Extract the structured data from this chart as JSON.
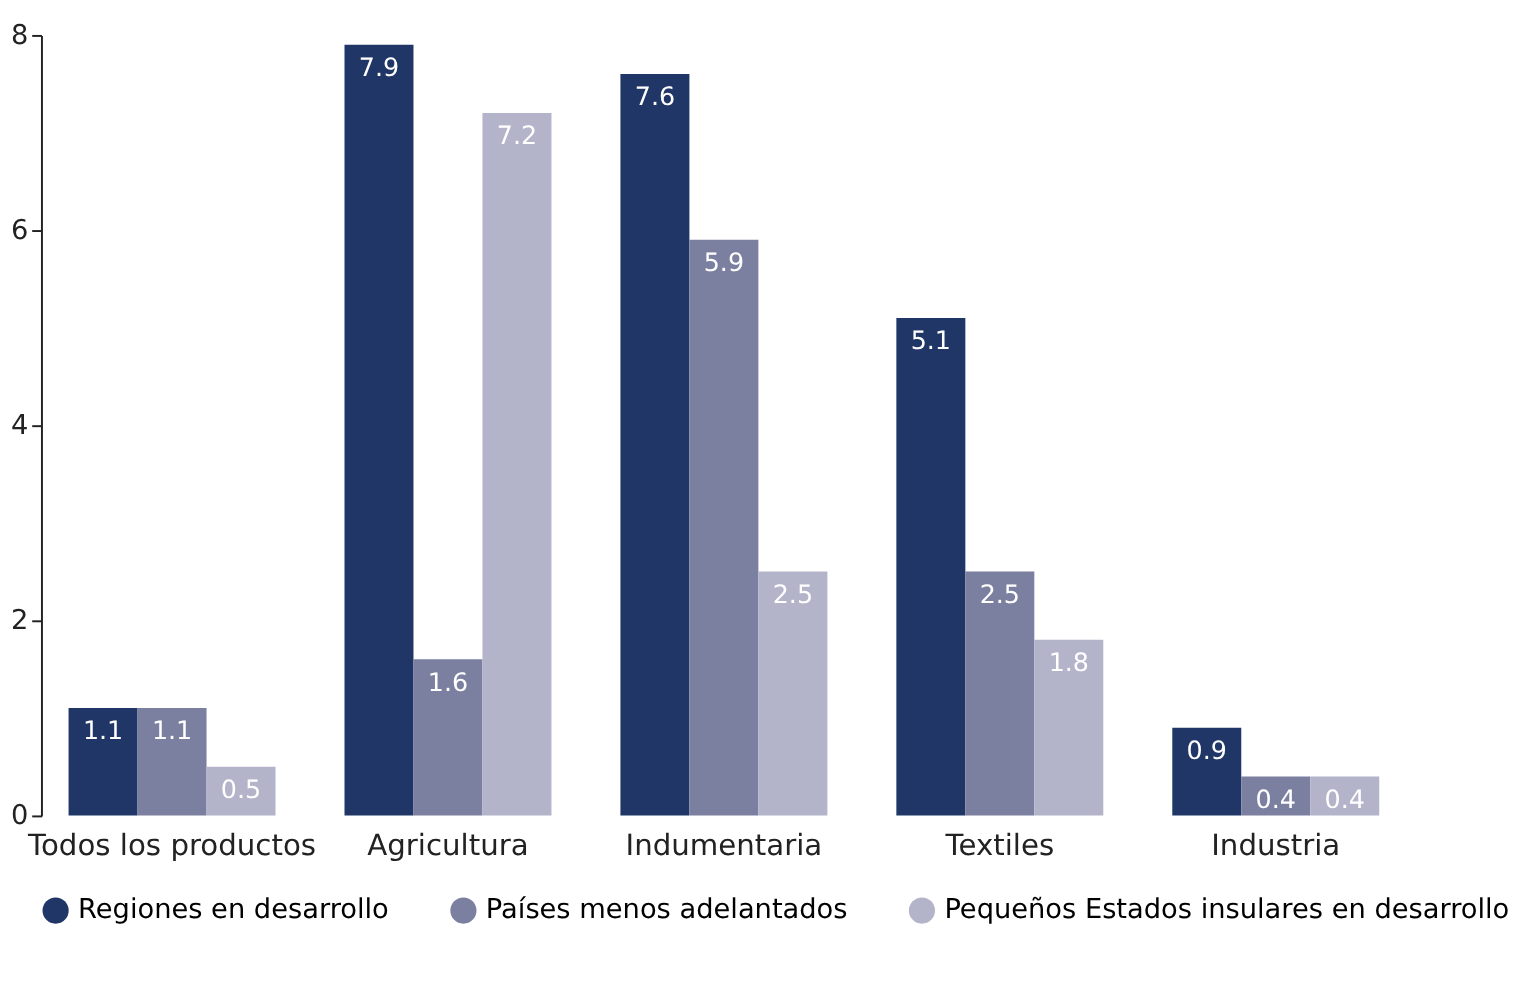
{
  "chart_data": {
    "type": "bar",
    "categories": [
      "Todos los productos",
      "Agricultura",
      "Indumentaria",
      "Textiles",
      "Industria"
    ],
    "series": [
      {
        "name": "Regiones en desarrollo",
        "color": "#1f3666",
        "values": [
          1.1,
          7.9,
          7.6,
          5.1,
          0.9
        ]
      },
      {
        "name": "Países menos adelantados",
        "color": "#7b7fa0",
        "values": [
          1.1,
          1.6,
          5.9,
          2.5,
          0.4
        ]
      },
      {
        "name": "Pequeños Estados insulares en desarrollo",
        "color": "#b3b3ca",
        "values": [
          0.5,
          7.2,
          2.5,
          1.8,
          0.4
        ]
      }
    ],
    "ylim": [
      0,
      8
    ],
    "yticks": [
      0,
      2,
      4,
      6,
      8
    ],
    "grid": false,
    "legend": "bottom",
    "data_labels": true
  }
}
